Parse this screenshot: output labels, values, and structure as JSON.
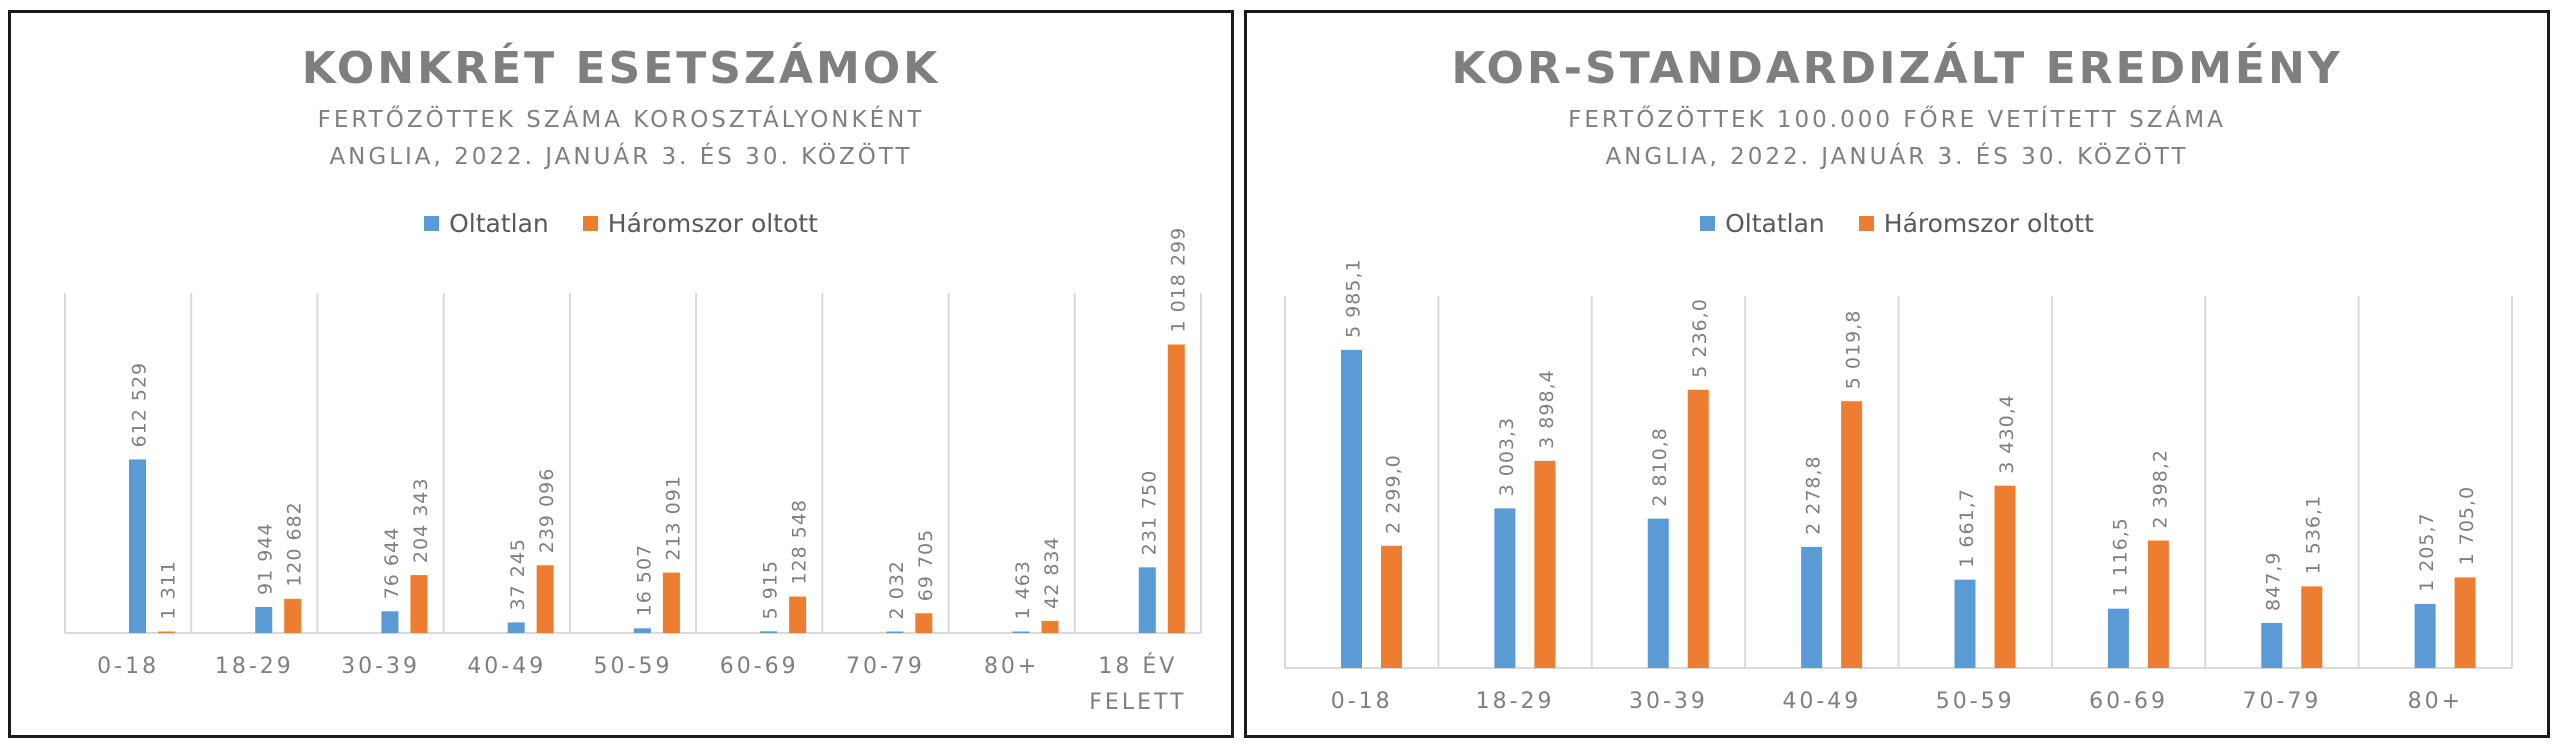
{
  "colors": {
    "unvaccinated": "#5b9bd5",
    "boosted": "#ed7d31",
    "grid": "#d9d9d9",
    "text": "#7f7f7f"
  },
  "legend": {
    "unvaccinated": "Oltatlan",
    "boosted": "Háromszor oltott"
  },
  "left": {
    "title": "KONKRÉT ESETSZÁMOK",
    "subtitle1": "FERTŐZÖTTEK SZÁMA KOROSZTÁLYONKÉNT",
    "subtitle2": "ANGLIA, 2022. JANUÁR 3. ÉS 30. KÖZÖTT"
  },
  "right": {
    "title": "KOR-STANDARDIZÁLT EREDMÉNY",
    "subtitle1": "FERTŐZÖTTEK 100.000 FŐRE VETÍTETT SZÁMA",
    "subtitle2": "ANGLIA, 2022. JANUÁR 3. ÉS 30. KÖZÖTT"
  },
  "chart_data": [
    {
      "type": "bar",
      "title": "KONKRÉT ESETSZÁMOK",
      "categories": [
        "0-18",
        "18-29",
        "30-39",
        "40-49",
        "50-59",
        "60-69",
        "70-79",
        "80+",
        "18 ÉV FELETT"
      ],
      "series": [
        {
          "name": "Oltatlan",
          "values": [
            612529,
            91944,
            76644,
            37245,
            16507,
            5915,
            2032,
            1463,
            231750
          ],
          "labels": [
            "612 529",
            "91 944",
            "76 644",
            "37 245",
            "16 507",
            "5 915",
            "2 032",
            "1 463",
            "231 750"
          ]
        },
        {
          "name": "Háromszor oltott",
          "values": [
            1311,
            120682,
            204343,
            239096,
            213091,
            128548,
            69705,
            42834,
            1018299
          ],
          "labels": [
            "1 311",
            "120 682",
            "204 343",
            "239 096",
            "213 091",
            "128 548",
            "69 705",
            "42 834",
            "1 018 299"
          ]
        }
      ],
      "ylim": [
        0,
        1200000
      ],
      "grid": "vertical",
      "legend": "top"
    },
    {
      "type": "bar",
      "title": "KOR-STANDARDIZÁLT EREDMÉNY",
      "categories": [
        "0-18",
        "18-29",
        "30-39",
        "40-49",
        "50-59",
        "60-69",
        "70-79",
        "80+"
      ],
      "series": [
        {
          "name": "Oltatlan",
          "values": [
            5985.1,
            3003.3,
            2810.8,
            2278.8,
            1661.7,
            1116.5,
            847.9,
            1205.7
          ],
          "labels": [
            "5 985,1",
            "3 003,3",
            "2 810,8",
            "2 278,8",
            "1 661,7",
            "1 116,5",
            "847,9",
            "1 205,7"
          ]
        },
        {
          "name": "Háromszor oltott",
          "values": [
            2299.0,
            3898.4,
            5236.0,
            5019.8,
            3430.4,
            2398.2,
            1536.1,
            1705.0
          ],
          "labels": [
            "2 299,0",
            "3 898,4",
            "5 236,0",
            "5 019,8",
            "3 430,4",
            "2 398,2",
            "1 536,1",
            "1 705,0"
          ]
        }
      ],
      "ylim": [
        0,
        7000
      ],
      "grid": "vertical",
      "legend": "top"
    }
  ]
}
